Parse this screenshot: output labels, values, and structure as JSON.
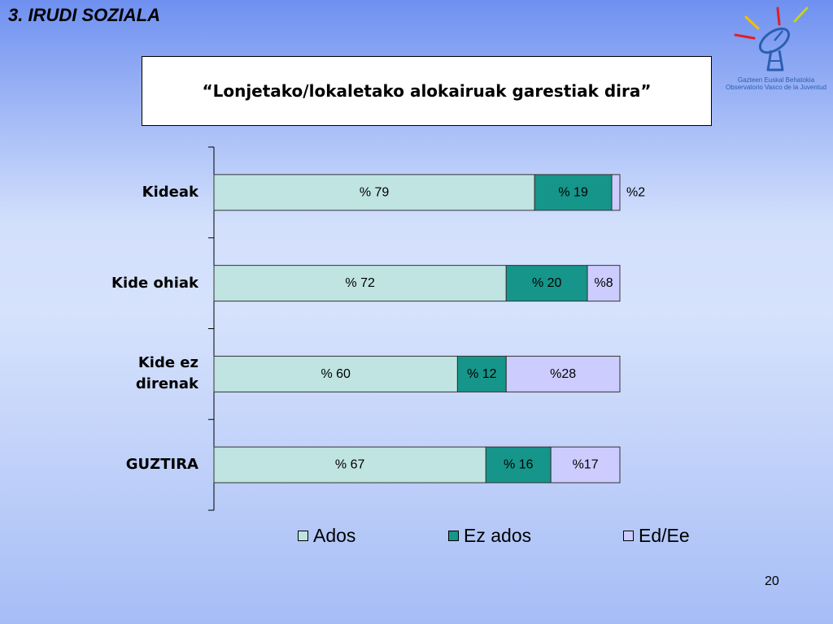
{
  "slide": {
    "heading": "3. IRUDI SOZIALA",
    "page_number": "20"
  },
  "logo": {
    "icon": "satellite-dish-icon",
    "line1": "Gazteen Euskal Behatokia",
    "line2": "Observatorio Vasco de la Juventud",
    "colors": {
      "dish": "#2b5fb0",
      "ray_red": "#e02020",
      "ray_yellow": "#f0c000",
      "ray_green": "#c4d21e"
    }
  },
  "chart_data": {
    "type": "bar",
    "orientation": "horizontal",
    "stacked": true,
    "title": "“Lonjetako/lokaletako alokairuak garestiak dira”",
    "categories": [
      "Kideak",
      "Kide ohiak",
      "Kide ez direnak",
      "GUZTIRA"
    ],
    "series": [
      {
        "name": "Ados",
        "values": [
          79,
          72,
          60,
          67
        ],
        "labels": [
          "% 79",
          "% 72",
          "% 60",
          "% 67"
        ],
        "color": "#bfe4e2"
      },
      {
        "name": "Ez ados",
        "values": [
          19,
          20,
          12,
          16
        ],
        "labels": [
          "% 19",
          "% 20",
          "% 12",
          "% 16"
        ],
        "color": "#16958a"
      },
      {
        "name": "Ed/Ee",
        "values": [
          2,
          8,
          28,
          17
        ],
        "labels": [
          "%2",
          "%8",
          "%28",
          "%17"
        ],
        "color": "#ccccff"
      }
    ],
    "xlim": [
      0,
      100
    ],
    "legend": "bottom",
    "grid": false
  }
}
